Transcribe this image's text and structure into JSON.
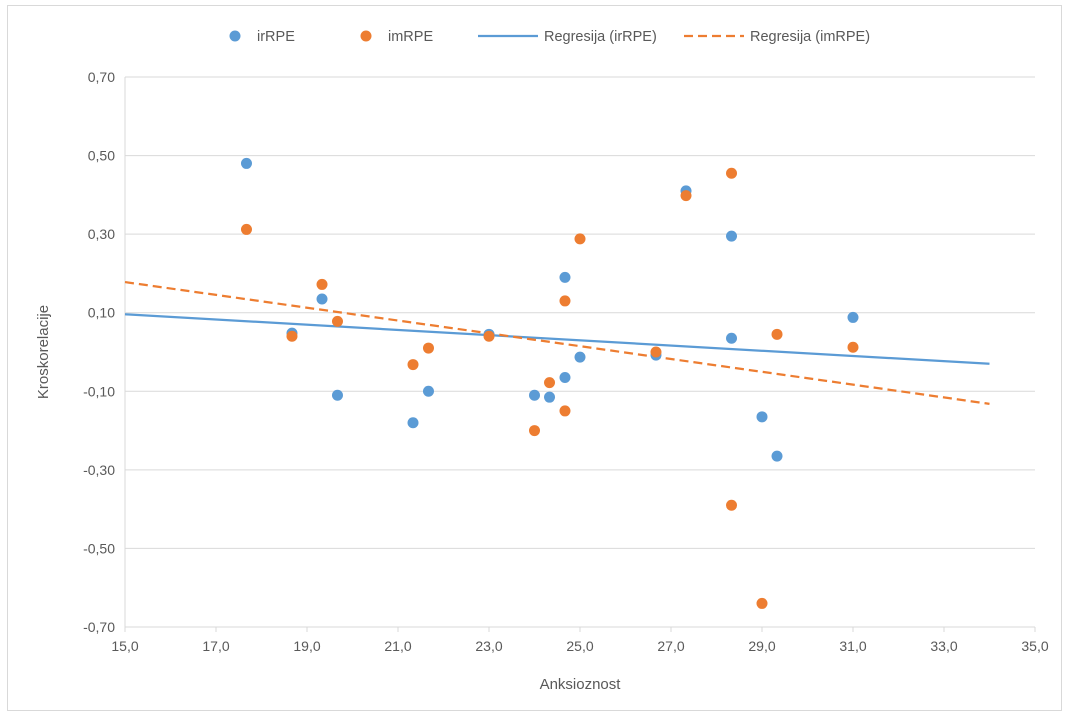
{
  "chart_data": {
    "type": "scatter",
    "xlabel": "Anksioznost",
    "ylabel": "Kroskorelacije",
    "xlim": [
      15,
      35
    ],
    "ylim": [
      -0.7,
      0.7
    ],
    "x_ticks": [
      "15,0",
      "17,0",
      "19,0",
      "21,0",
      "23,0",
      "25,0",
      "27,0",
      "29,0",
      "31,0",
      "33,0",
      "35,0"
    ],
    "y_ticks": [
      "0,70",
      "0,50",
      "0,30",
      "0,10",
      "-0,10",
      "-0,30",
      "-0,50",
      "-0,70"
    ],
    "grid": "horizontal",
    "legend_position": "top",
    "series": [
      {
        "name": "irRPE",
        "kind": "scatter",
        "color": "#5b9bd5",
        "points": [
          [
            17.67,
            0.48
          ],
          [
            18.67,
            0.048
          ],
          [
            19.33,
            0.135
          ],
          [
            19.67,
            -0.11
          ],
          [
            21.33,
            -0.18
          ],
          [
            21.67,
            -0.1
          ],
          [
            23.0,
            0.045
          ],
          [
            24.0,
            -0.11
          ],
          [
            24.33,
            -0.115
          ],
          [
            24.67,
            0.19
          ],
          [
            24.67,
            -0.065
          ],
          [
            25.0,
            -0.013
          ],
          [
            26.67,
            -0.008
          ],
          [
            27.33,
            0.41
          ],
          [
            28.33,
            0.295
          ],
          [
            28.33,
            0.035
          ],
          [
            29.0,
            -0.165
          ],
          [
            29.33,
            -0.265
          ],
          [
            31.0,
            0.088
          ]
        ]
      },
      {
        "name": "imRPE",
        "kind": "scatter",
        "color": "#ed7d31",
        "points": [
          [
            17.67,
            0.312
          ],
          [
            18.67,
            0.04
          ],
          [
            19.33,
            0.172
          ],
          [
            19.67,
            0.078
          ],
          [
            21.33,
            -0.032
          ],
          [
            21.67,
            0.01
          ],
          [
            23.0,
            0.04
          ],
          [
            24.0,
            -0.2
          ],
          [
            24.33,
            -0.078
          ],
          [
            24.67,
            0.13
          ],
          [
            24.67,
            -0.15
          ],
          [
            25.0,
            0.288
          ],
          [
            26.67,
            0.0
          ],
          [
            27.33,
            0.398
          ],
          [
            28.33,
            0.455
          ],
          [
            28.33,
            -0.39
          ],
          [
            29.0,
            -0.64
          ],
          [
            29.33,
            0.045
          ],
          [
            31.0,
            0.012
          ]
        ]
      },
      {
        "name": "Regresija (irRPE)",
        "kind": "line",
        "style": "solid",
        "color": "#5b9bd5",
        "points": [
          [
            15.0,
            0.096
          ],
          [
            34.0,
            -0.03
          ]
        ]
      },
      {
        "name": "Regresija (imRPE)",
        "kind": "line",
        "style": "dashed",
        "color": "#ed7d31",
        "points": [
          [
            15.0,
            0.178
          ],
          [
            34.0,
            -0.132
          ]
        ]
      }
    ]
  }
}
